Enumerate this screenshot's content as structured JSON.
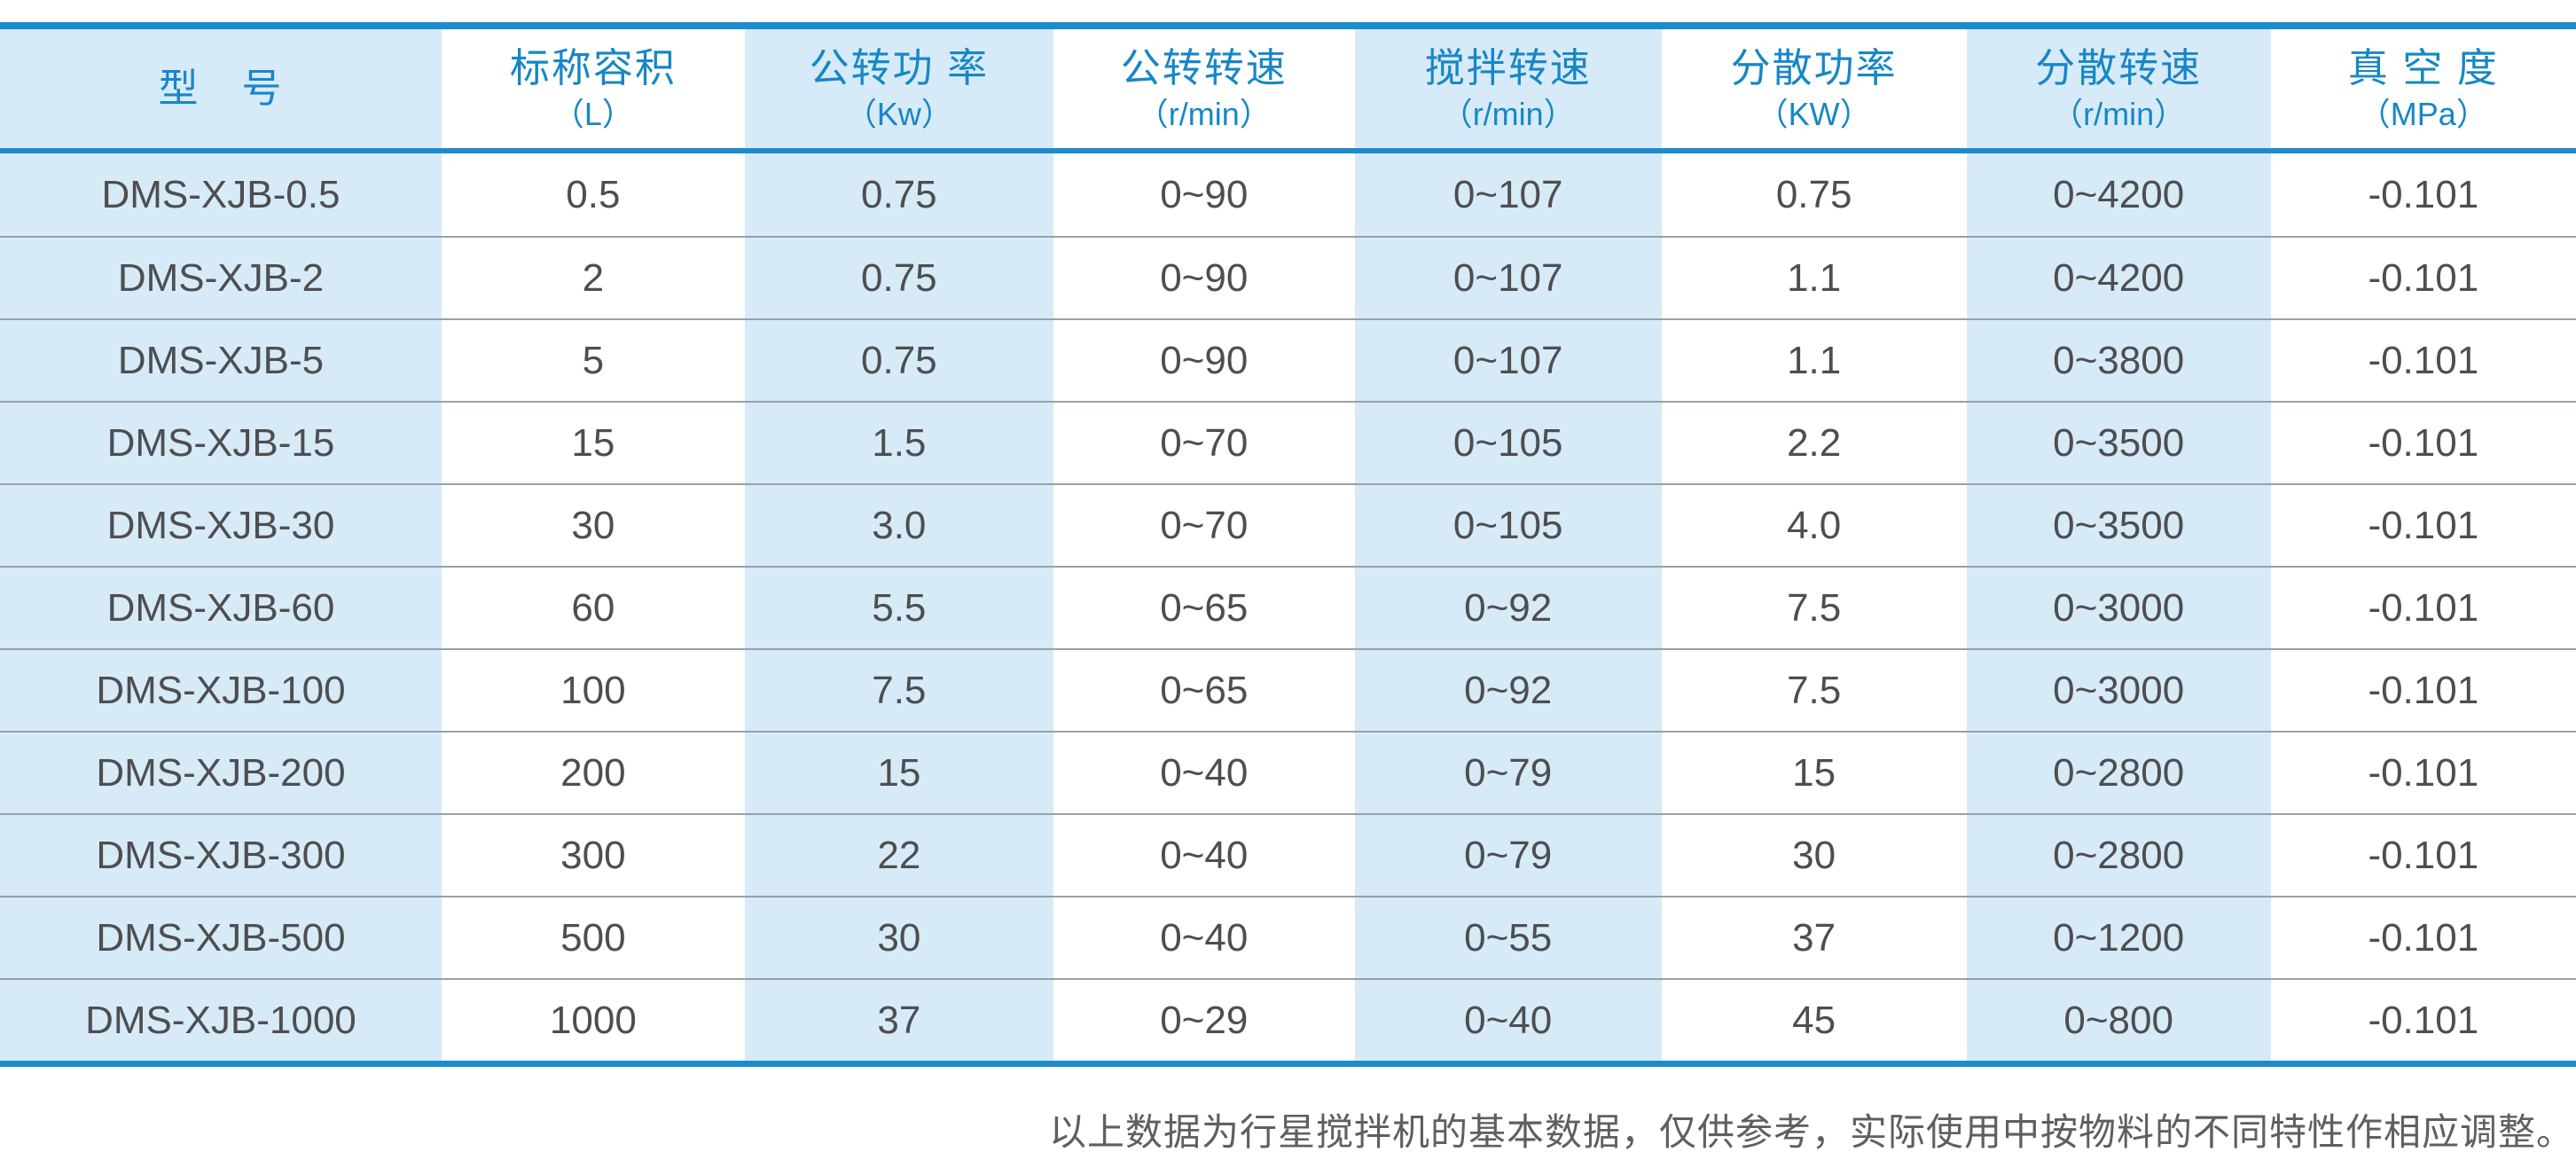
{
  "table": {
    "columns": [
      {
        "label": "型　号",
        "unit": ""
      },
      {
        "label": "标称容积",
        "unit": "（L）"
      },
      {
        "label": "公转功 率",
        "unit": "（Kw）"
      },
      {
        "label": "公转转速",
        "unit": "（r/min）"
      },
      {
        "label": "搅拌转速",
        "unit": "（r/min）"
      },
      {
        "label": "分散功率",
        "unit": "（KW）"
      },
      {
        "label": "分散转速",
        "unit": "（r/min）"
      },
      {
        "label": "真 空 度",
        "unit": "（MPa）"
      }
    ],
    "rows": [
      [
        "DMS-XJB-0.5",
        "0.5",
        "0.75",
        "0~90",
        "0~107",
        "0.75",
        "0~4200",
        "-0.101"
      ],
      [
        "DMS-XJB-2",
        "2",
        "0.75",
        "0~90",
        "0~107",
        "1.1",
        "0~4200",
        "-0.101"
      ],
      [
        "DMS-XJB-5",
        "5",
        "0.75",
        "0~90",
        "0~107",
        "1.1",
        "0~3800",
        "-0.101"
      ],
      [
        "DMS-XJB-15",
        "15",
        "1.5",
        "0~70",
        "0~105",
        "2.2",
        "0~3500",
        "-0.101"
      ],
      [
        "DMS-XJB-30",
        "30",
        "3.0",
        "0~70",
        "0~105",
        "4.0",
        "0~3500",
        "-0.101"
      ],
      [
        "DMS-XJB-60",
        "60",
        "5.5",
        "0~65",
        "0~92",
        "7.5",
        "0~3000",
        "-0.101"
      ],
      [
        "DMS-XJB-100",
        "100",
        "7.5",
        "0~65",
        "0~92",
        "7.5",
        "0~3000",
        "-0.101"
      ],
      [
        "DMS-XJB-200",
        "200",
        "15",
        "0~40",
        "0~79",
        "15",
        "0~2800",
        "-0.101"
      ],
      [
        "DMS-XJB-300",
        "300",
        "22",
        "0~40",
        "0~79",
        "30",
        "0~2800",
        "-0.101"
      ],
      [
        "DMS-XJB-500",
        "500",
        "30",
        "0~40",
        "0~55",
        "37",
        "0~1200",
        "-0.101"
      ],
      [
        "DMS-XJB-1000",
        "1000",
        "37",
        "0~29",
        "0~40",
        "45",
        "0~800",
        "-0.101"
      ]
    ]
  },
  "footer": {
    "note": "以上数据为行星搅拌机的基本数据，仅供参考，实际使用中按物料的不同特性作相应调整。"
  },
  "colors": {
    "accent_blue": "#1d8ccb",
    "band_light_blue": "#d7eaf8",
    "header_text_blue": "#1787c5",
    "body_text_gray": "#4e4e50",
    "row_separator_gray": "#9aa0a4",
    "footnote_gray": "#5f5f5f"
  }
}
